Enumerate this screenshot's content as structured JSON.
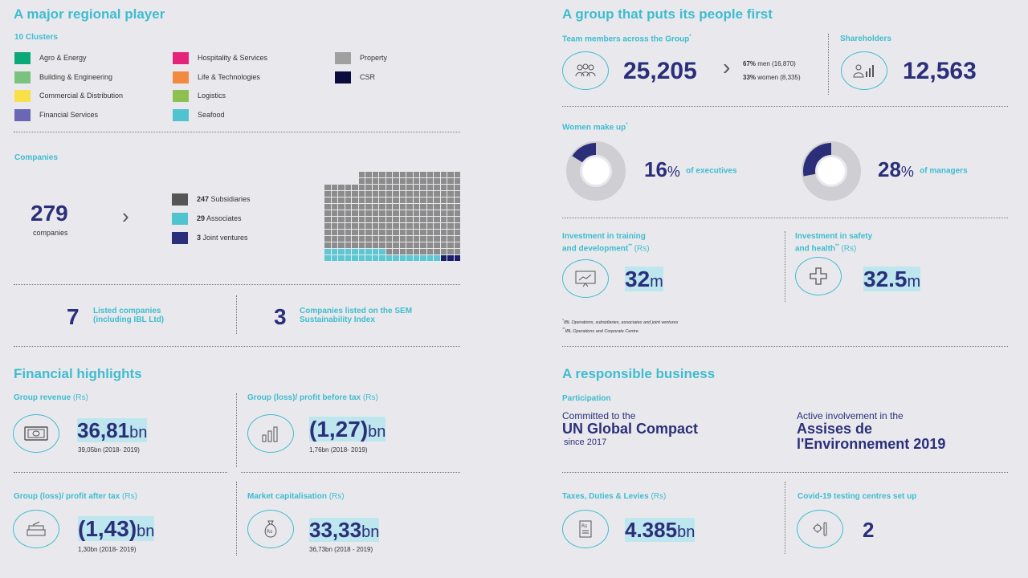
{
  "left": {
    "title": "A major regional player",
    "clusters_title": "10 Clusters",
    "clusters": [
      {
        "label": "Agro & Energy",
        "color": "#0aa977"
      },
      {
        "label": "Building & Engineering",
        "color": "#7ac37e"
      },
      {
        "label": "Commercial & Distribution",
        "color": "#f9df49"
      },
      {
        "label": "Financial Services",
        "color": "#6b67b6"
      },
      {
        "label": "Hospitality & Services",
        "color": "#e6237b"
      },
      {
        "label": "Life & Technologies",
        "color": "#f28a40"
      },
      {
        "label": "Logistics",
        "color": "#8cc152"
      },
      {
        "label": "Seafood",
        "color": "#4fc3d0"
      },
      {
        "label": "Property",
        "color": "#a0a0a0"
      },
      {
        "label": "CSR",
        "color": "#0c0b3d"
      }
    ],
    "companies_title": "Companies",
    "companies_value": "279",
    "companies_caption": "companies",
    "chevron": "›",
    "company_types": [
      {
        "count": "247",
        "label": "Subsidiaries",
        "color": "#555555"
      },
      {
        "count": "29",
        "label": "Associates",
        "color": "#4fc3d0"
      },
      {
        "count": "3",
        "label": "Joint ventures",
        "color": "#2b2f7a"
      }
    ],
    "waffle": {
      "subsidiaries": 247,
      "associates": 29,
      "joint_ventures": 3
    },
    "listed_value": "7",
    "listed_label_1": "Listed companies",
    "listed_label_2": "(including IBL Ltd)",
    "sem_value": "3",
    "sem_label_1": "Companies listed on the SEM",
    "sem_label_2": "Sustainability Index"
  },
  "financial": {
    "title": "Financial highlights",
    "revenue_title": "Group revenue",
    "revenue_unit_label": "(Rs)",
    "revenue_value": "36,81",
    "revenue_unit": "bn",
    "revenue_prev": "39,05bn (2018- 2019)",
    "pbt_title": "Group (loss)/ profit before tax",
    "pbt_unit_label": "(Rs)",
    "pbt_value": "(1,27)",
    "pbt_unit": "bn",
    "pbt_prev": "1,76bn (2018- 2019)",
    "pat_title": "Group (loss)/ profit after tax",
    "pat_unit_label": "(Rs)",
    "pat_value": "(1,43)",
    "pat_unit": "bn",
    "pat_prev": "1,30bn (2018- 2019)",
    "mcap_title": "Market capitalisation",
    "mcap_unit_label": "(Rs)",
    "mcap_value": "33,33",
    "mcap_unit": "bn",
    "mcap_prev": "36,73bn (2018 - 2019)"
  },
  "people": {
    "title": "A group that puts its people first",
    "team_title": "Team members across the Group",
    "team_value": "25,205",
    "team_men_pct": "67%",
    "team_men": "men (16,870)",
    "team_women_pct": "33%",
    "team_women": "women (8,335)",
    "share_title": "Shareholders",
    "share_value": "12,563",
    "women_title": "Women make up",
    "exec_value": "16",
    "exec_fraction": 0.16,
    "exec_label": "of executives",
    "mgr_value": "28",
    "mgr_fraction": 0.28,
    "mgr_label": "of managers",
    "pct": "%",
    "training_title_1": "Investment in training",
    "training_title_2": "and development",
    "training_unit_label": "(Rs)",
    "training_value": "32",
    "training_unit": "m",
    "safety_title_1": "Investment in safety",
    "safety_title_2": "and health",
    "safety_unit_label": "(Rs)",
    "safety_value": "32.5",
    "safety_unit": "m",
    "footnote_1": "IBL Operations, subsidiaries, associates and joint ventures",
    "footnote_2": "IBL Operations and Corporate Centre"
  },
  "responsible": {
    "title": "A responsible business",
    "participation": "Participation",
    "ungc_pre": "Committed to the",
    "ungc_name": "UN Global Compact",
    "ungc_since": "since 2017",
    "assises_pre": "Active involvement in the",
    "assises_name_1": "Assises de",
    "assises_name_2": "l'Environnement 2019",
    "taxes_title": "Taxes, Duties & Levies",
    "taxes_unit_label": "(Rs)",
    "taxes_value": "4.385",
    "taxes_unit": "bn",
    "covid_title": "Covid-19 testing centres set up",
    "covid_value": "2"
  }
}
